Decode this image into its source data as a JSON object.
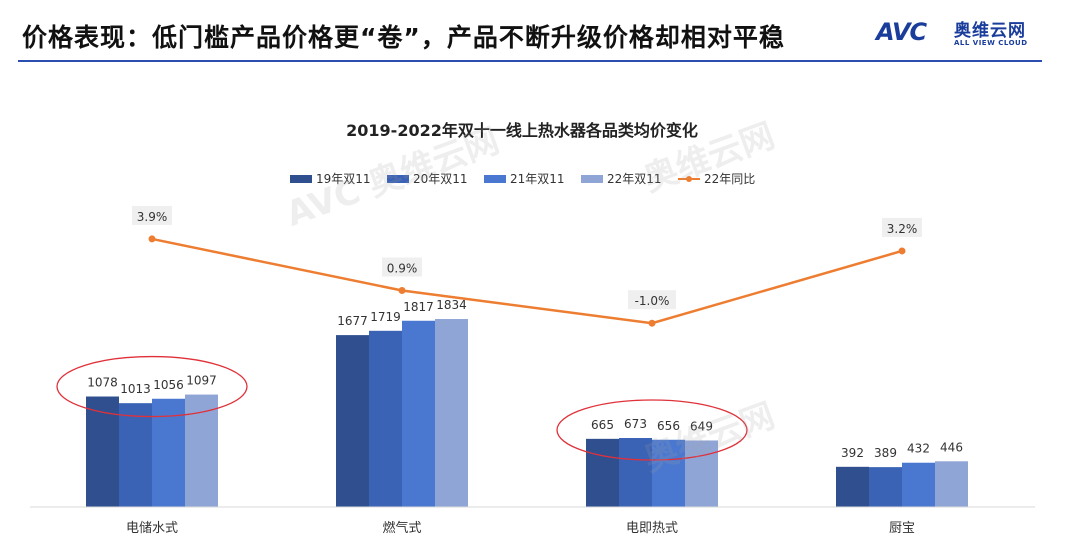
{
  "header": {
    "title": "价格表现：低门槛产品价格更“卷”，产品不断升级价格却相对平稳",
    "logo_mark": "AVC",
    "logo_cn": "奥维云网",
    "logo_en": "ALL VIEW CLOUD"
  },
  "watermark": {
    "cn": "奥维云网",
    "en": "ALL VIEW CLOUD",
    "mark": "AVC"
  },
  "colors": {
    "series": [
      "#2f4f8f",
      "#3a62b5",
      "#4a78d0",
      "#8fa5d6"
    ],
    "line": "#ed7d31",
    "header_rule": "#2a4fb0",
    "highlight_ellipse": "#e0313a"
  },
  "chart_data": {
    "type": "bar",
    "title": "2019-2022年双十一线上热水器各品类均价变化",
    "categories": [
      "电储水式",
      "燃气式",
      "电即热式",
      "厨宝"
    ],
    "series": [
      {
        "name": "19年双11",
        "values": [
          1078,
          1677,
          665,
          392
        ]
      },
      {
        "name": "20年双11",
        "values": [
          1013,
          1719,
          673,
          389
        ]
      },
      {
        "name": "21年双11",
        "values": [
          1056,
          1817,
          656,
          432
        ]
      },
      {
        "name": "22年双11",
        "values": [
          1097,
          1834,
          649,
          446
        ]
      }
    ],
    "line_series": {
      "name": "22年同比",
      "values": [
        3.9,
        0.9,
        -1.0,
        3.2
      ],
      "labels": [
        "3.9%",
        "0.9%",
        "-1.0%",
        "3.2%"
      ]
    },
    "highlighted_categories": [
      "电储水式",
      "电即热式"
    ],
    "legend_position": "top",
    "grid": false
  }
}
